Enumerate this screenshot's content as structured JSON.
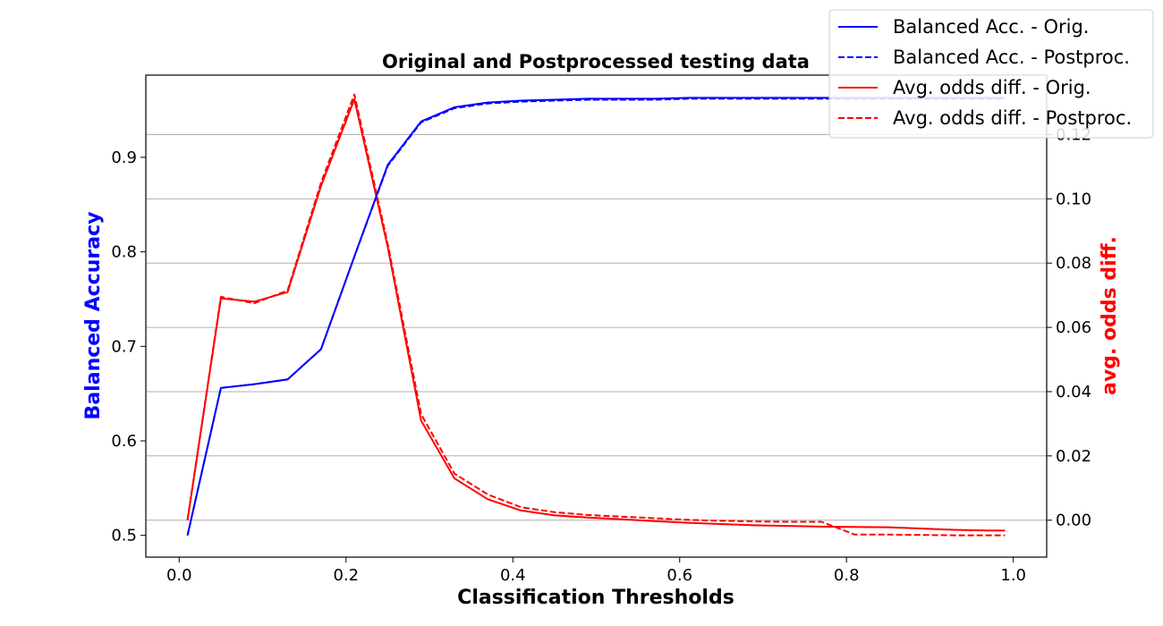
{
  "chart_data": {
    "type": "line",
    "title": "Original and Postprocessed testing data",
    "xlabel": "Classification Thresholds",
    "ylabel_left": "Balanced Accuracy",
    "ylabel_right": "avg. odds diff.",
    "xlim": [
      -0.04,
      1.04
    ],
    "ylim_left": [
      0.477,
      0.987
    ],
    "ylim_right": [
      -0.0115,
      0.1385
    ],
    "x_ticks": [
      0.0,
      0.2,
      0.4,
      0.6,
      0.8,
      1.0
    ],
    "x_tick_labels": [
      "0.0",
      "0.2",
      "0.4",
      "0.6",
      "0.8",
      "1.0"
    ],
    "y_left_ticks": [
      0.5,
      0.6,
      0.7,
      0.8,
      0.9
    ],
    "y_left_tick_labels": [
      "0.5",
      "0.6",
      "0.7",
      "0.8",
      "0.9"
    ],
    "y_right_ticks": [
      0.0,
      0.02,
      0.04,
      0.06,
      0.08,
      0.1,
      0.12
    ],
    "y_right_tick_labels": [
      "0.00",
      "0.02",
      "0.04",
      "0.06",
      "0.08",
      "0.10",
      "0.12"
    ],
    "grid": "horizontal, right axis",
    "legend_position": "top-right",
    "colors": {
      "blue": "#0000ff",
      "red": "#ff0000"
    },
    "x": [
      0.01,
      0.05,
      0.09,
      0.13,
      0.17,
      0.21,
      0.25,
      0.29,
      0.33,
      0.37,
      0.41,
      0.45,
      0.49,
      0.53,
      0.57,
      0.61,
      0.65,
      0.69,
      0.73,
      0.77,
      0.81,
      0.85,
      0.89,
      0.93,
      0.97,
      0.99
    ],
    "series": [
      {
        "name": "Balanced Acc. - Orig.",
        "axis": "left",
        "color": "#0000ff",
        "style": "solid",
        "values": [
          0.5,
          0.656,
          0.66,
          0.665,
          0.697,
          0.795,
          0.892,
          0.938,
          0.953,
          0.958,
          0.96,
          0.961,
          0.962,
          0.962,
          0.962,
          0.963,
          0.963,
          0.963,
          0.963,
          0.963,
          0.963,
          0.963,
          0.963,
          0.963,
          0.963,
          0.963
        ]
      },
      {
        "name": "Balanced Acc. - Postproc.",
        "axis": "left",
        "color": "#0000ff",
        "style": "dashed",
        "values": [
          0.5,
          0.656,
          0.66,
          0.665,
          0.697,
          0.795,
          0.891,
          0.937,
          0.952,
          0.957,
          0.959,
          0.96,
          0.961,
          0.961,
          0.961,
          0.962,
          0.962,
          0.962,
          0.962,
          0.962,
          0.962,
          0.962,
          0.962,
          0.962,
          0.962,
          0.962
        ]
      },
      {
        "name": "Avg. odds diff. - Orig.",
        "axis": "right",
        "color": "#ff0000",
        "style": "solid",
        "values": [
          0.0,
          0.069,
          0.068,
          0.071,
          0.104,
          0.131,
          0.085,
          0.031,
          0.013,
          0.0065,
          0.003,
          0.0015,
          0.0008,
          0.0003,
          -0.0003,
          -0.0008,
          -0.0012,
          -0.0016,
          -0.0018,
          -0.002,
          -0.0021,
          -0.0022,
          -0.0026,
          -0.003,
          -0.0032,
          -0.0032
        ]
      },
      {
        "name": "Avg. odds diff. - Postproc.",
        "axis": "right",
        "color": "#ff0000",
        "style": "dashed",
        "values": [
          0.0,
          0.0695,
          0.0675,
          0.0715,
          0.105,
          0.1325,
          0.086,
          0.033,
          0.0145,
          0.008,
          0.004,
          0.0025,
          0.0016,
          0.0011,
          0.0006,
          0.0001,
          -0.0002,
          -0.0004,
          -0.0005,
          -0.0005,
          -0.0045,
          -0.0045,
          -0.0046,
          -0.0047,
          -0.0047,
          -0.0047
        ]
      }
    ]
  }
}
